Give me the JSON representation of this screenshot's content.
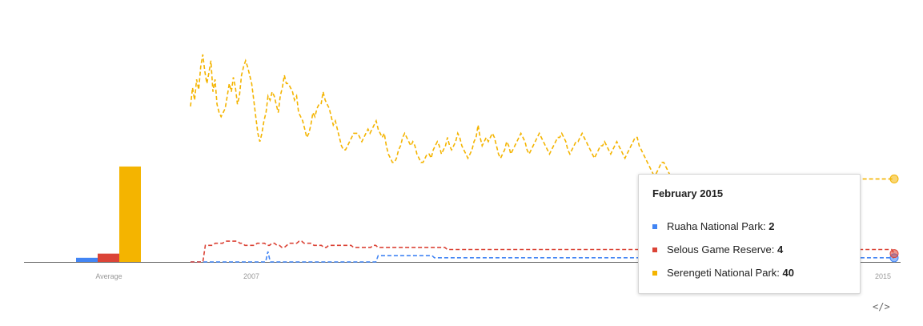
{
  "chart_data": {
    "type": "line",
    "average_bars": {
      "label": "Average",
      "values": [
        {
          "series": "Ruaha National Park",
          "value": 2
        },
        {
          "series": "Selous Game Reserve",
          "value": 4
        },
        {
          "series": "Serengeti National Park",
          "value": 46
        }
      ]
    },
    "x_tick_labels": [
      "2007",
      "",
      "",
      "",
      "2015"
    ],
    "ylim": [
      0,
      100
    ],
    "series": [
      {
        "name": "Ruaha National Park",
        "color": "#4285f4",
        "dashed": true,
        "values": [
          0,
          0,
          0,
          0,
          0,
          0,
          0,
          0,
          0,
          0,
          0,
          0,
          0,
          0,
          0,
          0,
          0,
          0,
          0,
          0,
          0,
          0,
          0,
          0,
          0,
          0,
          0,
          0,
          0,
          0,
          0,
          0,
          0,
          5,
          0,
          0,
          0,
          0,
          0,
          0,
          0,
          0,
          0,
          0,
          0,
          0,
          0,
          0,
          0,
          0,
          0,
          0,
          0,
          0,
          0,
          0,
          0,
          0,
          0,
          0,
          0,
          0,
          0,
          0,
          0,
          0,
          0,
          0,
          0,
          0,
          0,
          0,
          0,
          0,
          0,
          0,
          0,
          0,
          0,
          0,
          3,
          3,
          3,
          3,
          3,
          3,
          3,
          3,
          3,
          3,
          3,
          3,
          3,
          3,
          3,
          3,
          3,
          3,
          3,
          3,
          3,
          3,
          3,
          3,
          2,
          2,
          2,
          2,
          2,
          2,
          2,
          2,
          2,
          2,
          2,
          2,
          2,
          2,
          2,
          2,
          2,
          2,
          2,
          2,
          2,
          2,
          2,
          2,
          2,
          2,
          2,
          2,
          2,
          2,
          2,
          2,
          2,
          2,
          2,
          2,
          2,
          2,
          2,
          2,
          2,
          2,
          2,
          2,
          2,
          2,
          2,
          2,
          2,
          2,
          2,
          2,
          2,
          2,
          2,
          2,
          2,
          2,
          2,
          2,
          2,
          2,
          2,
          2,
          2,
          2,
          2,
          2,
          2,
          2,
          2,
          2,
          2,
          2,
          2,
          2,
          2,
          2,
          2,
          2,
          2,
          2,
          2,
          2,
          2,
          2,
          2,
          2,
          2,
          2,
          2,
          2,
          2,
          2,
          2,
          2,
          2,
          2,
          2,
          2,
          2,
          2,
          2,
          2,
          2,
          2,
          2,
          2,
          2,
          2,
          2,
          2,
          2,
          2,
          2,
          2,
          2,
          2,
          2,
          2,
          2,
          2,
          2,
          2,
          2,
          2,
          2,
          2,
          2,
          2,
          2,
          2,
          2,
          2,
          2,
          2,
          2,
          2,
          2,
          2,
          2,
          2,
          2,
          2,
          2,
          2,
          2,
          2,
          2,
          2,
          2,
          2,
          2,
          2,
          2,
          2,
          2,
          2,
          2,
          2,
          2,
          2,
          2,
          2,
          2,
          2,
          2,
          2,
          2,
          2,
          2,
          2,
          2,
          2,
          2,
          2,
          2,
          2,
          2,
          2,
          2,
          2,
          2,
          2,
          2,
          2,
          2,
          2,
          2,
          2,
          2,
          2,
          2,
          2,
          2,
          2,
          2
        ]
      },
      {
        "name": "Selous Game Reserve",
        "color": "#db4437",
        "dashed": true,
        "values": [
          0,
          0,
          0,
          0,
          0,
          0,
          8,
          8,
          8,
          8,
          9,
          9,
          9,
          9,
          10,
          10,
          10,
          10,
          10,
          10,
          9,
          9,
          8,
          8,
          8,
          8,
          8,
          9,
          9,
          9,
          9,
          8,
          8,
          9,
          9,
          8,
          8,
          7,
          7,
          8,
          9,
          9,
          9,
          9,
          10,
          10,
          9,
          9,
          9,
          9,
          8,
          8,
          8,
          8,
          7,
          7,
          8,
          8,
          8,
          8,
          8,
          8,
          8,
          8,
          8,
          8,
          7,
          7,
          7,
          7,
          7,
          7,
          7,
          7,
          8,
          8,
          7,
          7,
          7,
          7,
          7,
          7,
          7,
          7,
          7,
          7,
          7,
          7,
          7,
          7,
          7,
          7,
          7,
          7,
          7,
          7,
          7,
          7,
          7,
          7,
          7,
          7,
          7,
          7,
          6,
          6,
          6,
          6,
          6,
          6,
          6,
          6,
          6,
          6,
          6,
          6,
          6,
          6,
          6,
          6,
          6,
          6,
          6,
          6,
          6,
          6,
          6,
          6,
          6,
          6,
          6,
          6,
          6,
          6,
          6,
          6,
          6,
          6,
          6,
          6,
          6,
          6,
          6,
          6,
          6,
          6,
          6,
          6,
          6,
          6,
          6,
          6,
          6,
          6,
          6,
          6,
          6,
          6,
          6,
          6,
          6,
          6,
          6,
          6,
          6,
          6,
          6,
          6,
          6,
          6,
          6,
          6,
          6,
          6,
          6,
          6,
          6,
          6,
          6,
          6,
          6,
          6,
          6,
          6,
          6,
          6,
          6,
          6,
          6,
          6,
          6,
          6,
          6,
          6,
          6,
          6,
          6,
          6,
          6,
          6,
          6,
          6,
          6,
          6,
          6,
          6,
          6,
          6,
          6,
          6,
          6,
          6,
          6,
          6,
          6,
          6,
          6,
          6,
          6,
          6,
          6,
          6,
          6,
          6,
          6,
          6,
          6,
          6,
          6,
          6,
          6,
          6,
          6,
          6,
          6,
          6,
          6,
          6,
          6,
          6,
          6,
          6,
          6,
          6,
          6,
          6,
          6,
          6,
          6,
          6,
          6,
          6,
          6,
          6,
          6,
          6,
          6,
          6,
          6,
          6,
          6,
          6,
          6,
          6,
          6,
          6,
          6,
          6,
          6,
          6,
          6,
          6,
          6,
          6,
          6,
          6,
          6,
          6,
          6,
          6,
          6,
          6,
          6,
          6,
          6,
          4
        ]
      },
      {
        "name": "Serengeti National Park",
        "color": "#f4b400",
        "dashed": true,
        "values": [
          75,
          84,
          78,
          88,
          83,
          94,
          100,
          92,
          86,
          91,
          97,
          82,
          88,
          76,
          72,
          70,
          72,
          74,
          80,
          86,
          82,
          89,
          84,
          76,
          80,
          90,
          94,
          97,
          94,
          90,
          86,
          78,
          70,
          62,
          58,
          62,
          68,
          72,
          80,
          78,
          82,
          80,
          76,
          72,
          80,
          84,
          90,
          86,
          86,
          84,
          82,
          78,
          80,
          72,
          70,
          68,
          64,
          60,
          62,
          66,
          72,
          70,
          74,
          76,
          76,
          82,
          78,
          76,
          74,
          70,
          66,
          68,
          64,
          60,
          56,
          54,
          54,
          56,
          58,
          60,
          62,
          62,
          62,
          60,
          58,
          60,
          62,
          64,
          62,
          64,
          66,
          68,
          64,
          62,
          60,
          62,
          56,
          52,
          50,
          48,
          48,
          50,
          54,
          56,
          60,
          62,
          60,
          58,
          56,
          58,
          56,
          52,
          50,
          48,
          48,
          50,
          52,
          52,
          50,
          54,
          56,
          58,
          56,
          52,
          54,
          56,
          60,
          56,
          54,
          56,
          58,
          62,
          60,
          56,
          54,
          52,
          50,
          52,
          54,
          58,
          60,
          66,
          60,
          56,
          58,
          60,
          58,
          60,
          62,
          60,
          56,
          52,
          50,
          52,
          54,
          58,
          56,
          52,
          54,
          56,
          58,
          60,
          62,
          60,
          58,
          54,
          52,
          54,
          56,
          58,
          60,
          62,
          60,
          58,
          56,
          54,
          52,
          54,
          56,
          58,
          60,
          60,
          62,
          60,
          58,
          54,
          52,
          54,
          56,
          58,
          58,
          60,
          62,
          60,
          58,
          56,
          54,
          52,
          50,
          52,
          54,
          56,
          56,
          58,
          56,
          54,
          52,
          54,
          56,
          58,
          56,
          54,
          52,
          50,
          52,
          54,
          56,
          58,
          60,
          60,
          56,
          54,
          52,
          50,
          48,
          46,
          44,
          42,
          42,
          44,
          46,
          48,
          48,
          46,
          44,
          42,
          40,
          40,
          40,
          40,
          40,
          40,
          40,
          40,
          40,
          40,
          40,
          40,
          40,
          40,
          40,
          40,
          40,
          40,
          40,
          40,
          40,
          40,
          40,
          40,
          40,
          40,
          40,
          40,
          40,
          40,
          40,
          40,
          40,
          40,
          40,
          40,
          40,
          40,
          40,
          40,
          40,
          40,
          40,
          40,
          40,
          40,
          40,
          40,
          40,
          40,
          40,
          40,
          40,
          40,
          40,
          40,
          40,
          40,
          40,
          40,
          40,
          40,
          40,
          40,
          40,
          40,
          40,
          40,
          40,
          40,
          40,
          40,
          40,
          40,
          40,
          40,
          40,
          40,
          40,
          40,
          40,
          40,
          40,
          40,
          40,
          40,
          40,
          40,
          40,
          40,
          40,
          40,
          40,
          40,
          40,
          40,
          40,
          40,
          40,
          40,
          40,
          40,
          40,
          40,
          40,
          40,
          40,
          40,
          40,
          40
        ]
      }
    ]
  },
  "tooltip": {
    "title": "February 2015",
    "rows": [
      {
        "label": "Ruaha National Park: ",
        "value": "2",
        "color": "#4285f4"
      },
      {
        "label": "Selous Game Reserve: ",
        "value": "4",
        "color": "#db4437"
      },
      {
        "label": "Serengeti National Park: ",
        "value": "40",
        "color": "#f4b400"
      }
    ]
  },
  "embed_icon": "</>"
}
